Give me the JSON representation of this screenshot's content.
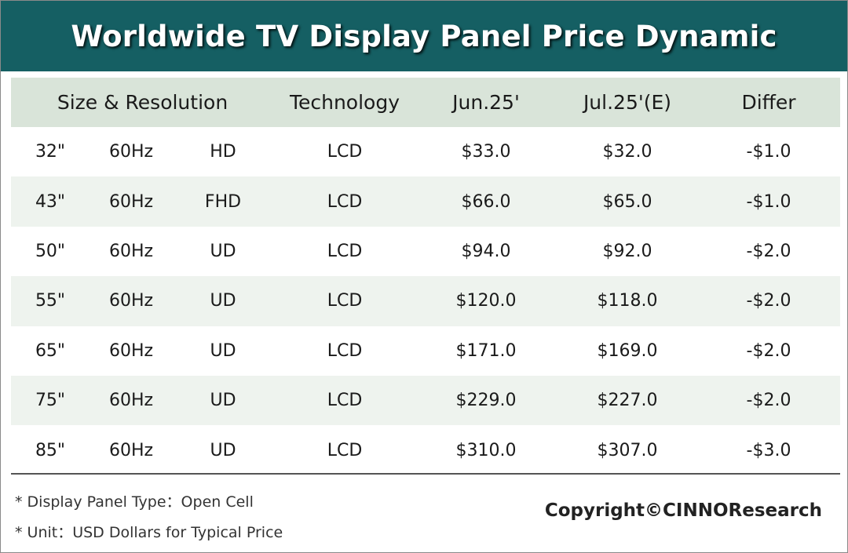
{
  "title": "Worldwide TV Display Panel Price Dynamic",
  "colors": {
    "banner": "#155f63",
    "header_row": "#d9e4d9",
    "alt_row": "#eef3ee"
  },
  "chart_data": {
    "type": "table",
    "title": "Worldwide TV Display Panel Price Dynamic",
    "columns": [
      "Size & Resolution",
      "Technology",
      "Jun.25'",
      "Jul.25'(E)",
      "Differ"
    ],
    "rows": [
      {
        "size": "32\"",
        "refresh": "60Hz",
        "resolution": "HD",
        "technology": "LCD",
        "jun": "$33.0",
        "jul": "$32.0",
        "differ": "-$1.0"
      },
      {
        "size": "43\"",
        "refresh": "60Hz",
        "resolution": "FHD",
        "technology": "LCD",
        "jun": "$66.0",
        "jul": "$65.0",
        "differ": "-$1.0"
      },
      {
        "size": "50\"",
        "refresh": "60Hz",
        "resolution": "UD",
        "technology": "LCD",
        "jun": "$94.0",
        "jul": "$92.0",
        "differ": "-$2.0"
      },
      {
        "size": "55\"",
        "refresh": "60Hz",
        "resolution": "UD",
        "technology": "LCD",
        "jun": "$120.0",
        "jul": "$118.0",
        "differ": "-$2.0"
      },
      {
        "size": "65\"",
        "refresh": "60Hz",
        "resolution": "UD",
        "technology": "LCD",
        "jun": "$171.0",
        "jul": "$169.0",
        "differ": "-$2.0"
      },
      {
        "size": "75\"",
        "refresh": "60Hz",
        "resolution": "UD",
        "technology": "LCD",
        "jun": "$229.0",
        "jul": "$227.0",
        "differ": "-$2.0"
      },
      {
        "size": "85\"",
        "refresh": "60Hz",
        "resolution": "UD",
        "technology": "LCD",
        "jun": "$310.0",
        "jul": "$307.0",
        "differ": "-$3.0"
      }
    ]
  },
  "notes": [
    "* Display Panel Type：Open Cell",
    "* Unit：USD Dollars for Typical Price"
  ],
  "copyright": "Copyright©CINNOResearch"
}
